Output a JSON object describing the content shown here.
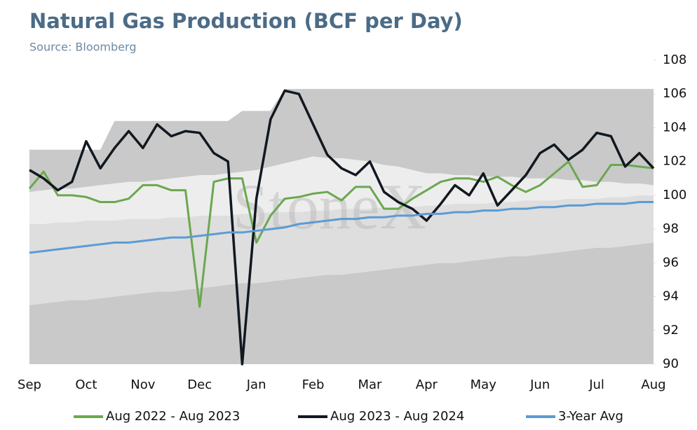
{
  "chart_data": {
    "type": "line",
    "title": "Natural Gas Production (BCF per Day)",
    "subtitle": "Source: Bloomberg",
    "watermark": "StoneX",
    "categories": [
      "Sep",
      null,
      null,
      null,
      "Oct",
      null,
      null,
      null,
      "Nov",
      null,
      null,
      null,
      "Dec",
      null,
      null,
      null,
      "Jan",
      null,
      null,
      null,
      "Feb",
      null,
      null,
      null,
      "Mar",
      null,
      null,
      null,
      "Apr",
      null,
      null,
      null,
      "May",
      null,
      null,
      null,
      "Jun",
      null,
      null,
      null,
      "Jul",
      null,
      null,
      null,
      "Aug"
    ],
    "ylim": [
      90,
      108
    ],
    "yticks": [
      90,
      92,
      94,
      96,
      98,
      100,
      102,
      104,
      106,
      108
    ],
    "bands": [
      {
        "color": "#c9c9c9",
        "values": [
          93.5,
          93.6,
          93.7,
          93.8,
          93.8,
          93.9,
          94.0,
          94.1,
          94.2,
          94.3,
          94.3,
          94.4,
          94.5,
          94.6,
          94.7,
          94.8,
          94.8,
          94.9,
          95.0,
          95.1,
          95.2,
          95.3,
          95.3,
          95.4,
          95.5,
          95.6,
          95.7,
          95.8,
          95.9,
          96.0,
          96.0,
          96.1,
          96.2,
          96.3,
          96.4,
          96.4,
          96.5,
          96.6,
          96.7,
          96.8,
          96.9,
          96.9,
          97.0,
          97.1,
          97.2
        ]
      },
      {
        "color": "#dedede",
        "values": [
          98.3,
          98.3,
          98.4,
          98.4,
          98.5,
          98.5,
          98.5,
          98.6,
          98.6,
          98.6,
          98.7,
          98.7,
          98.8,
          98.8,
          98.8,
          98.9,
          98.9,
          99.0,
          99.0,
          99.0,
          99.1,
          99.1,
          99.2,
          99.2,
          99.2,
          99.3,
          99.3,
          99.3,
          99.4,
          99.4,
          99.5,
          99.5,
          99.5,
          99.6,
          99.6,
          99.7,
          99.7,
          99.7,
          99.8,
          99.8,
          99.8,
          99.9,
          99.9,
          100.0,
          100.0
        ]
      },
      {
        "color": "#ededed",
        "values": [
          100.2,
          100.3,
          100.4,
          100.4,
          100.5,
          100.6,
          100.7,
          100.8,
          100.8,
          100.9,
          101.0,
          101.1,
          101.2,
          101.2,
          101.3,
          101.4,
          101.5,
          101.7,
          101.9,
          102.1,
          102.3,
          102.2,
          102.2,
          102.1,
          102.0,
          101.8,
          101.7,
          101.5,
          101.3,
          101.3,
          101.2,
          101.2,
          101.1,
          101.1,
          101.1,
          101.0,
          101.0,
          101.0,
          100.9,
          100.9,
          100.8,
          100.8,
          100.7,
          100.7,
          100.6
        ]
      },
      {
        "color": "#c9c9c9",
        "values": [
          102.7,
          102.7,
          102.7,
          102.7,
          102.7,
          102.7,
          104.4,
          104.4,
          104.4,
          104.4,
          104.4,
          104.4,
          104.4,
          104.4,
          104.4,
          105,
          105,
          105,
          106.3,
          106.3,
          106.3,
          106.3,
          106.3,
          106.3,
          106.3,
          106.3,
          106.3,
          106.3,
          106.3,
          106.3,
          106.3,
          106.3,
          106.3,
          106.3,
          106.3,
          106.3,
          106.3,
          106.3,
          106.3,
          106.3,
          106.3,
          106.3,
          106.3,
          106.3,
          106.3
        ]
      }
    ],
    "series": [
      {
        "name": "Aug 2022 - Aug 2023",
        "color": "#6aa84f",
        "values": [
          100.4,
          101.4,
          100,
          100,
          99.9,
          99.6,
          99.6,
          99.8,
          100.6,
          100.6,
          100.3,
          100.3,
          93.4,
          100.8,
          101,
          101,
          97.2,
          98.8,
          99.8,
          99.9,
          100.1,
          100.2,
          99.7,
          100.5,
          100.5,
          99.2,
          99.2,
          99.8,
          100.3,
          100.8,
          101,
          101,
          100.8,
          101.1,
          100.6,
          100.2,
          100.6,
          101.3,
          102,
          100.5,
          100.6,
          101.8,
          101.8,
          101.7,
          101.6
        ]
      },
      {
        "name": "Aug 2023 - Aug 2024",
        "color": "#111820",
        "values": [
          101.5,
          101,
          100.3,
          100.8,
          103.2,
          101.6,
          102.8,
          103.8,
          102.8,
          104.2,
          103.5,
          103.8,
          103.7,
          102.5,
          102,
          90,
          99.8,
          104.5,
          106.2,
          106,
          104.2,
          102.4,
          101.6,
          101.2,
          102,
          100.2,
          99.6,
          99.2,
          98.5,
          99.5,
          100.6,
          100,
          101.3,
          99.4,
          100.3,
          101.2,
          102.5,
          103,
          102.1,
          102.7,
          103.7,
          103.5,
          101.7,
          102.5,
          101.6
        ]
      },
      {
        "name": "3-Year Avg",
        "color": "#5b9bd5",
        "values": [
          96.6,
          96.7,
          96.8,
          96.9,
          97.0,
          97.1,
          97.2,
          97.2,
          97.3,
          97.4,
          97.5,
          97.5,
          97.6,
          97.7,
          97.8,
          97.8,
          97.9,
          98.0,
          98.1,
          98.3,
          98.4,
          98.5,
          98.6,
          98.6,
          98.7,
          98.7,
          98.8,
          98.8,
          98.9,
          98.9,
          99.0,
          99.0,
          99.1,
          99.1,
          99.2,
          99.2,
          99.3,
          99.3,
          99.4,
          99.4,
          99.5,
          99.5,
          99.5,
          99.6,
          99.6
        ]
      }
    ],
    "legend": "bottom"
  }
}
